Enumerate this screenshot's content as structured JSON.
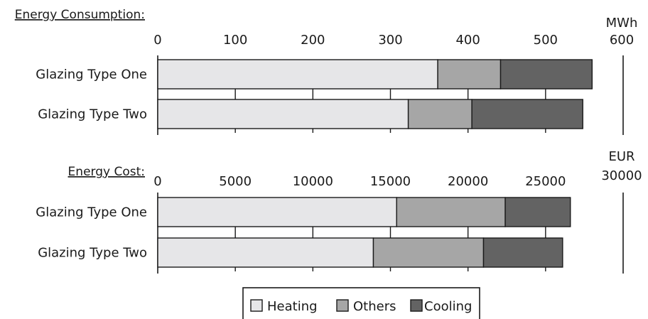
{
  "chart_data": [
    {
      "type": "bar",
      "stacked": true,
      "orientation": "horizontal",
      "title": "Energy Consumption:",
      "unit": "MWh",
      "xlim": [
        0,
        600
      ],
      "ticks": [
        0,
        100,
        200,
        300,
        400,
        500,
        600
      ],
      "categories": [
        "Glazing Type One",
        "Glazing Type Two"
      ],
      "series": [
        {
          "name": "Heating",
          "values": [
            361,
            323
          ]
        },
        {
          "name": "Others",
          "values": [
            81,
            82
          ]
        },
        {
          "name": "Cooling",
          "values": [
            118,
            143
          ]
        }
      ]
    },
    {
      "type": "bar",
      "stacked": true,
      "orientation": "horizontal",
      "title": "Energy Cost:",
      "unit": "EUR",
      "xlim": [
        0,
        30000
      ],
      "ticks": [
        0,
        5000,
        10000,
        15000,
        20000,
        25000,
        30000
      ],
      "categories": [
        "Glazing Type One",
        "Glazing Type Two"
      ],
      "series": [
        {
          "name": "Heating",
          "values": [
            15400,
            13900
          ]
        },
        {
          "name": "Others",
          "values": [
            7000,
            7100
          ]
        },
        {
          "name": "Cooling",
          "values": [
            4200,
            5100
          ]
        }
      ]
    }
  ],
  "legend": {
    "items": [
      {
        "label": "Heating",
        "color": "#e6e6e8"
      },
      {
        "label": "Others",
        "color": "#a6a6a6"
      },
      {
        "label": "Cooling",
        "color": "#636363"
      }
    ]
  },
  "colors": {
    "Heating": "#e6e6e8",
    "Others": "#a6a6a6",
    "Cooling": "#636363"
  }
}
